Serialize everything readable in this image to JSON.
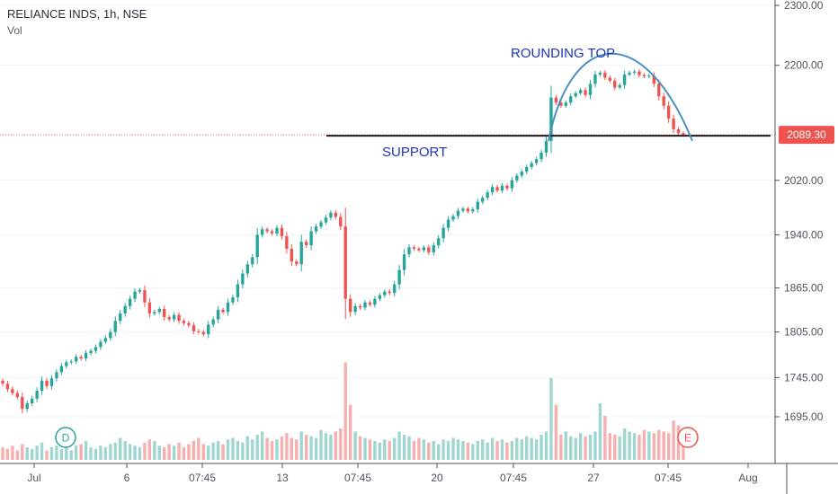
{
  "header": {
    "title": "RELIANCE INDS, 1h, NSE",
    "volume_label": "Vol"
  },
  "chart_data": {
    "type": "candlestick",
    "y_axis": {
      "ticks": [
        "2300.00",
        "2200.00",
        "2089.30",
        "2020.00",
        "1940.00",
        "1865.00",
        "1805.00",
        "1745.00",
        "1695.00"
      ],
      "tick_values": [
        2300,
        2200,
        2089.3,
        2020,
        1940,
        1865,
        1805,
        1745,
        1695
      ],
      "range": [
        1630,
        2305
      ],
      "scale": "log"
    },
    "x_axis": {
      "ticks": [
        "Jul",
        "6",
        "07:45",
        "13",
        "07:45",
        "20",
        "07:45",
        "27",
        "07:45",
        "Aug"
      ]
    },
    "last_price": {
      "label": "2089.30",
      "value": 2089.3,
      "color": "#ef5350"
    },
    "annotations": [
      {
        "text": "ROUNDING TOP",
        "color": "#1f35b5"
      },
      {
        "text": "SUPPORT",
        "color": "#1f35b5"
      }
    ],
    "markers": [
      {
        "letter": "D",
        "color": "#26a69a"
      },
      {
        "letter": "E",
        "color": "#ef5350"
      }
    ],
    "support_level": 2088,
    "colors": {
      "up": "#26a69a",
      "down": "#ef5350",
      "vol_up": "#9fd6d0",
      "vol_down": "#f7aeae",
      "arc": "#4a90c2",
      "support": "#1e1e1e",
      "annotation": "#1f35b5"
    },
    "closes": [
      1737,
      1730,
      1725,
      1720,
      1705,
      1712,
      1718,
      1728,
      1741,
      1734,
      1744,
      1752,
      1760,
      1765,
      1766,
      1772,
      1770,
      1777,
      1780,
      1785,
      1792,
      1797,
      1805,
      1820,
      1830,
      1840,
      1850,
      1860,
      1862,
      1845,
      1830,
      1832,
      1836,
      1825,
      1822,
      1828,
      1820,
      1817,
      1814,
      1806,
      1805,
      1802,
      1815,
      1822,
      1835,
      1832,
      1845,
      1852,
      1870,
      1885,
      1898,
      1908,
      1940,
      1948,
      1945,
      1942,
      1950,
      1938,
      1920,
      1902,
      1898,
      1930,
      1925,
      1945,
      1952,
      1958,
      1965,
      1972,
      1966,
      1952,
      1850,
      1832,
      1840,
      1838,
      1845,
      1842,
      1850,
      1855,
      1860,
      1858,
      1870,
      1890,
      1912,
      1922,
      1920,
      1918,
      1922,
      1915,
      1925,
      1935,
      1950,
      1962,
      1967,
      1975,
      1978,
      1974,
      1977,
      1988,
      1994,
      2002,
      2010,
      2005,
      2012,
      2008,
      2020,
      2027,
      2033,
      2040,
      2046,
      2052,
      2062,
      2080,
      2148,
      2140,
      2135,
      2140,
      2150,
      2155,
      2160,
      2152,
      2170,
      2185,
      2188,
      2180,
      2175,
      2164,
      2168,
      2185,
      2188,
      2190,
      2184,
      2182,
      2183,
      2170,
      2150,
      2135,
      2115,
      2098,
      2092,
      2089.3
    ],
    "volumes": [
      8,
      7,
      9,
      6,
      10,
      8,
      7,
      9,
      11,
      6,
      8,
      9,
      7,
      8,
      6,
      9,
      10,
      12,
      8,
      7,
      9,
      8,
      10,
      11,
      14,
      12,
      10,
      9,
      8,
      11,
      13,
      12,
      9,
      8,
      10,
      9,
      11,
      8,
      10,
      12,
      14,
      10,
      9,
      11,
      12,
      10,
      13,
      14,
      12,
      11,
      15,
      13,
      16,
      18,
      14,
      12,
      13,
      15,
      17,
      14,
      13,
      18,
      16,
      15,
      14,
      19,
      17,
      16,
      18,
      20,
      62,
      35,
      18,
      15,
      14,
      13,
      12,
      11,
      13,
      12,
      14,
      18,
      16,
      15,
      12,
      14,
      13,
      11,
      12,
      10,
      13,
      12,
      14,
      13,
      12,
      11,
      10,
      12,
      13,
      11,
      14,
      12,
      13,
      11,
      12,
      14,
      13,
      15,
      14,
      13,
      16,
      18,
      52,
      35,
      16,
      18,
      15,
      14,
      17,
      15,
      16,
      18,
      36,
      28,
      17,
      16,
      15,
      20,
      18,
      17,
      16,
      19,
      18,
      17,
      19,
      18,
      17,
      25,
      22,
      20
    ]
  }
}
